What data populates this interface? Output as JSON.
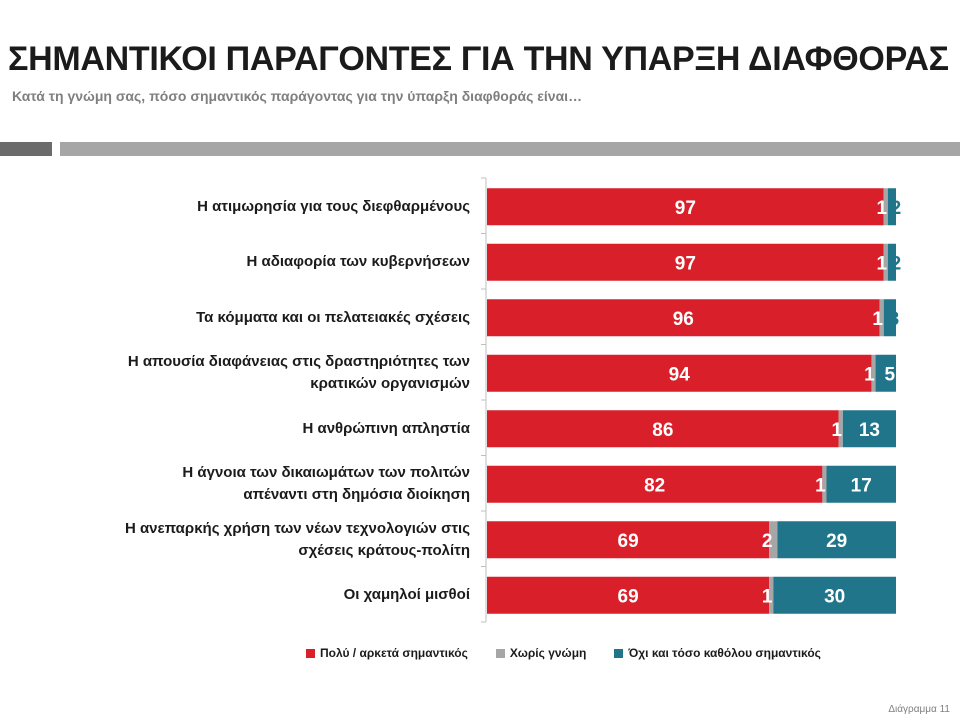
{
  "header": {
    "title": "ΣΗΜΑΝΤΙΚΟΙ ΠΑΡΑΓΟΝΤΕΣ ΓΙΑ ΤΗΝ ΥΠΑΡΞΗ ΔΙΑΦΘΟΡΑΣ",
    "subtitle": "Κατά τη γνώμη σας, πόσο σημαντικός παράγοντας για την ύπαρξη διαφθοράς είναι…"
  },
  "footer": {
    "page_label": "Διάγραμμα 11"
  },
  "chart_data": {
    "type": "bar",
    "orientation": "horizontal",
    "stacked": true,
    "categories": [
      "Η ατιμωρησία  για τους διεφθαρμένους",
      "Η αδιαφορία  των κυβερνήσεων",
      "Τα κόμματα και οι πελατειακές σχέσεις",
      "Η απουσία  διαφάνειας στις δραστηριότητες  των\nκρατικών οργανισμών",
      "Η ανθρώπινη  απληστία",
      "Η άγνοια των δικαιωμάτων  των πολιτών\nαπέναντι στη δημόσια διοίκηση",
      "Η ανεπαρκής χρήση  των νέων τεχνολογιών  στις\nσχέσεις κράτους-πολίτη",
      "Οι χαμηλοί  μισθοί"
    ],
    "series": [
      {
        "name": "Πολύ / αρκετά σημαντικός",
        "color": "#d9202a",
        "values": [
          97,
          97,
          96,
          94,
          86,
          82,
          69,
          69
        ]
      },
      {
        "name": "Χωρίς γνώμη",
        "color": "#a6a6a6",
        "values": [
          1,
          1,
          1,
          1,
          1,
          1,
          2,
          1
        ]
      },
      {
        "name": "Όχι και τόσο καθόλου σημαντικός",
        "color": "#21758a",
        "values": [
          2,
          2,
          3,
          5,
          13,
          17,
          29,
          30
        ]
      }
    ],
    "xlim": [
      0,
      100
    ],
    "legend_position": "bottom"
  }
}
